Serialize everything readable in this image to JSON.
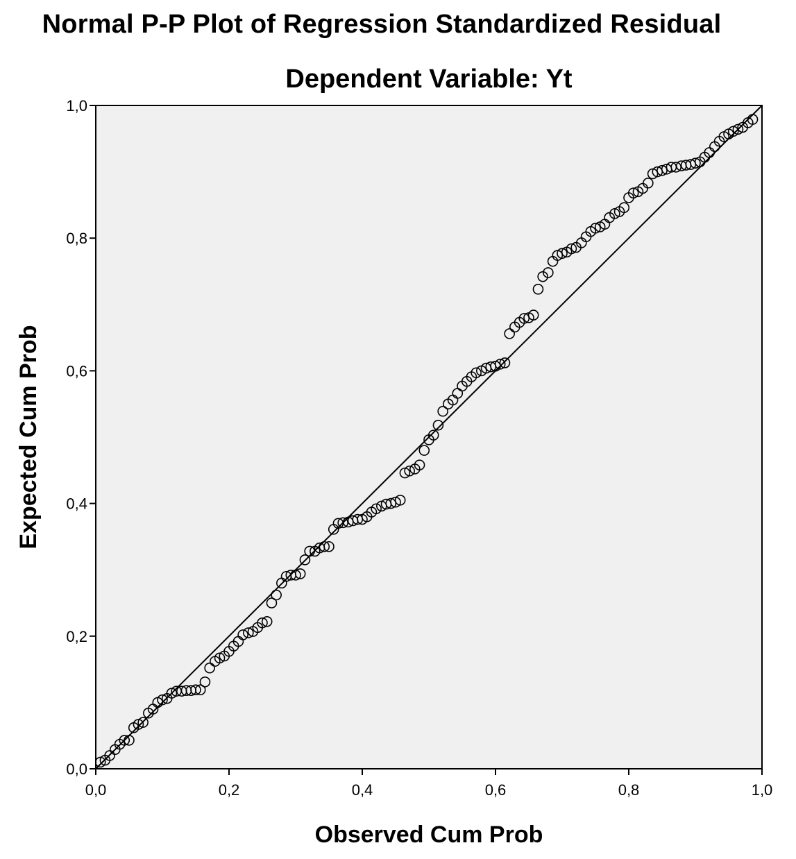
{
  "title": "Normal P-P Plot of Regression Standardized Residual",
  "subtitle": "Dependent Variable: Yt",
  "chart_data": {
    "type": "scatter",
    "xlabel": "Observed Cum Prob",
    "ylabel": "Expected Cum Prob",
    "xlim": [
      0,
      1
    ],
    "ylim": [
      0,
      1
    ],
    "x_ticks": [
      "0,0",
      "0,2",
      "0,4",
      "0,6",
      "0,8",
      "1,0"
    ],
    "y_ticks": [
      "0,0",
      "0,2",
      "0,4",
      "0,6",
      "0,8",
      "1,0"
    ],
    "grid": false,
    "reference_line": [
      [
        0,
        0
      ],
      [
        1,
        1
      ]
    ],
    "plot_background": "#f0f0f0",
    "marker": "open-circle",
    "points": [
      [
        0.007,
        0.01
      ],
      [
        0.014,
        0.013
      ],
      [
        0.021,
        0.02
      ],
      [
        0.029,
        0.029
      ],
      [
        0.036,
        0.037
      ],
      [
        0.043,
        0.043
      ],
      [
        0.05,
        0.043
      ],
      [
        0.057,
        0.062
      ],
      [
        0.064,
        0.067
      ],
      [
        0.071,
        0.07
      ],
      [
        0.079,
        0.084
      ],
      [
        0.086,
        0.09
      ],
      [
        0.093,
        0.1
      ],
      [
        0.1,
        0.104
      ],
      [
        0.107,
        0.106
      ],
      [
        0.114,
        0.114
      ],
      [
        0.121,
        0.117
      ],
      [
        0.129,
        0.117
      ],
      [
        0.136,
        0.118
      ],
      [
        0.143,
        0.118
      ],
      [
        0.15,
        0.119
      ],
      [
        0.157,
        0.119
      ],
      [
        0.164,
        0.131
      ],
      [
        0.171,
        0.152
      ],
      [
        0.179,
        0.162
      ],
      [
        0.186,
        0.167
      ],
      [
        0.193,
        0.17
      ],
      [
        0.2,
        0.177
      ],
      [
        0.207,
        0.185
      ],
      [
        0.214,
        0.192
      ],
      [
        0.221,
        0.202
      ],
      [
        0.229,
        0.205
      ],
      [
        0.236,
        0.207
      ],
      [
        0.243,
        0.213
      ],
      [
        0.25,
        0.22
      ],
      [
        0.257,
        0.222
      ],
      [
        0.264,
        0.25
      ],
      [
        0.271,
        0.262
      ],
      [
        0.279,
        0.28
      ],
      [
        0.286,
        0.29
      ],
      [
        0.293,
        0.292
      ],
      [
        0.3,
        0.292
      ],
      [
        0.307,
        0.294
      ],
      [
        0.314,
        0.315
      ],
      [
        0.321,
        0.328
      ],
      [
        0.329,
        0.328
      ],
      [
        0.336,
        0.333
      ],
      [
        0.343,
        0.335
      ],
      [
        0.35,
        0.335
      ],
      [
        0.357,
        0.361
      ],
      [
        0.364,
        0.37
      ],
      [
        0.371,
        0.371
      ],
      [
        0.379,
        0.372
      ],
      [
        0.386,
        0.374
      ],
      [
        0.393,
        0.376
      ],
      [
        0.4,
        0.376
      ],
      [
        0.407,
        0.38
      ],
      [
        0.414,
        0.387
      ],
      [
        0.421,
        0.392
      ],
      [
        0.429,
        0.396
      ],
      [
        0.436,
        0.399
      ],
      [
        0.443,
        0.4
      ],
      [
        0.45,
        0.402
      ],
      [
        0.457,
        0.405
      ],
      [
        0.464,
        0.446
      ],
      [
        0.471,
        0.449
      ],
      [
        0.479,
        0.452
      ],
      [
        0.486,
        0.458
      ],
      [
        0.493,
        0.48
      ],
      [
        0.5,
        0.496
      ],
      [
        0.507,
        0.503
      ],
      [
        0.514,
        0.518
      ],
      [
        0.521,
        0.539
      ],
      [
        0.529,
        0.55
      ],
      [
        0.536,
        0.556
      ],
      [
        0.543,
        0.566
      ],
      [
        0.55,
        0.577
      ],
      [
        0.557,
        0.584
      ],
      [
        0.564,
        0.591
      ],
      [
        0.571,
        0.597
      ],
      [
        0.579,
        0.6
      ],
      [
        0.586,
        0.604
      ],
      [
        0.593,
        0.606
      ],
      [
        0.6,
        0.607
      ],
      [
        0.607,
        0.61
      ],
      [
        0.614,
        0.612
      ],
      [
        0.621,
        0.656
      ],
      [
        0.629,
        0.666
      ],
      [
        0.636,
        0.673
      ],
      [
        0.643,
        0.679
      ],
      [
        0.65,
        0.68
      ],
      [
        0.657,
        0.684
      ],
      [
        0.664,
        0.723
      ],
      [
        0.671,
        0.742
      ],
      [
        0.679,
        0.748
      ],
      [
        0.686,
        0.765
      ],
      [
        0.693,
        0.774
      ],
      [
        0.7,
        0.777
      ],
      [
        0.707,
        0.779
      ],
      [
        0.714,
        0.784
      ],
      [
        0.721,
        0.786
      ],
      [
        0.729,
        0.793
      ],
      [
        0.736,
        0.802
      ],
      [
        0.743,
        0.81
      ],
      [
        0.75,
        0.815
      ],
      [
        0.757,
        0.817
      ],
      [
        0.764,
        0.821
      ],
      [
        0.771,
        0.831
      ],
      [
        0.779,
        0.837
      ],
      [
        0.786,
        0.84
      ],
      [
        0.793,
        0.846
      ],
      [
        0.8,
        0.861
      ],
      [
        0.807,
        0.868
      ],
      [
        0.814,
        0.87
      ],
      [
        0.821,
        0.875
      ],
      [
        0.829,
        0.883
      ],
      [
        0.836,
        0.897
      ],
      [
        0.843,
        0.9
      ],
      [
        0.85,
        0.902
      ],
      [
        0.857,
        0.904
      ],
      [
        0.864,
        0.907
      ],
      [
        0.871,
        0.907
      ],
      [
        0.879,
        0.909
      ],
      [
        0.886,
        0.91
      ],
      [
        0.893,
        0.911
      ],
      [
        0.9,
        0.913
      ],
      [
        0.907,
        0.915
      ],
      [
        0.914,
        0.922
      ],
      [
        0.921,
        0.929
      ],
      [
        0.929,
        0.938
      ],
      [
        0.936,
        0.946
      ],
      [
        0.943,
        0.953
      ],
      [
        0.95,
        0.957
      ],
      [
        0.957,
        0.961
      ],
      [
        0.964,
        0.964
      ],
      [
        0.971,
        0.967
      ],
      [
        0.979,
        0.974
      ],
      [
        0.986,
        0.979
      ]
    ]
  }
}
